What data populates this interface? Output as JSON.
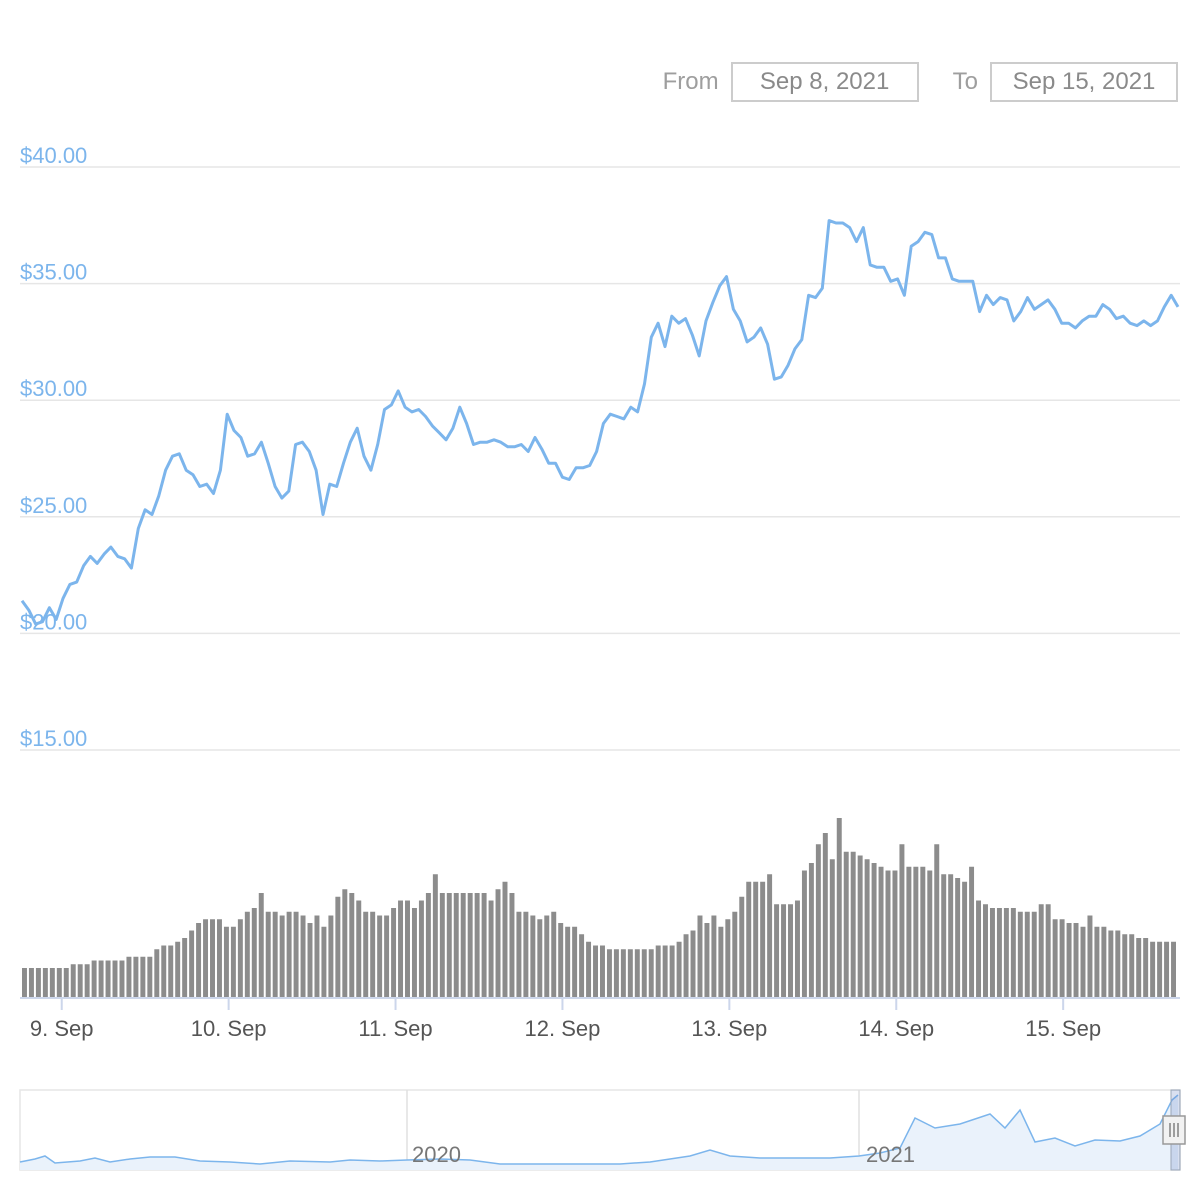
{
  "range_selector": {
    "from_label": "From",
    "from_value": "Sep 8, 2021",
    "to_label": "To",
    "to_value": "Sep 15, 2021"
  },
  "colors": {
    "price_line": "#7cb5ec",
    "volume_bar": "#8c8c8c",
    "grid": "#e6e6e6",
    "navigator_fill": "#eaf2fb",
    "navigator_mask": "#eef2f7"
  },
  "chart_data": {
    "type": "line",
    "title": "",
    "xlabel": "",
    "ylabel": "",
    "yaxis": {
      "ticks": [
        15,
        20,
        25,
        30,
        35,
        40
      ],
      "tick_labels": [
        "$15.00",
        "$20.00",
        "$25.00",
        "$30.00",
        "$35.00",
        "$40.00"
      ],
      "ylim": [
        15,
        40
      ]
    },
    "xaxis": {
      "range_days": [
        8.75,
        15.7
      ],
      "tick_days": [
        9,
        10,
        11,
        12,
        13,
        14,
        15
      ],
      "tick_labels": [
        "9. Sep",
        "10. Sep",
        "11. Sep",
        "12. Sep",
        "13. Sep",
        "14. Sep",
        "15. Sep"
      ]
    },
    "series": [
      {
        "values": [
          21.4,
          21.0,
          20.4,
          20.5,
          21.1,
          20.6,
          21.5,
          22.1,
          22.2,
          22.9,
          23.3,
          23.0,
          23.4,
          23.7,
          23.3,
          23.2,
          22.8,
          24.5,
          25.3,
          25.1,
          25.9,
          27.0,
          27.6,
          27.7,
          27.0,
          26.8,
          26.3,
          26.4,
          26.0,
          27.0,
          29.4,
          28.7,
          28.4,
          27.6,
          27.7,
          28.2,
          27.3,
          26.3,
          25.8,
          26.1,
          28.1,
          28.2,
          27.8,
          27.0,
          25.1,
          26.4,
          26.3,
          27.3,
          28.2,
          28.8,
          27.6,
          27.0,
          28.1,
          29.6,
          29.8,
          30.4,
          29.7,
          29.5,
          29.6,
          29.3,
          28.9,
          28.6,
          28.3,
          28.8,
          29.7,
          29.0,
          28.1,
          28.2,
          28.2,
          28.3,
          28.2,
          28.0,
          28.0,
          28.1,
          27.8,
          28.4,
          27.9,
          27.3,
          27.3,
          26.7,
          26.6,
          27.1,
          27.1,
          27.2,
          27.8,
          29.0,
          29.4,
          29.3,
          29.2,
          29.7,
          29.5,
          30.7,
          32.7,
          33.3,
          32.3,
          33.6,
          33.3,
          33.5,
          32.8,
          31.9,
          33.4,
          34.2,
          34.9,
          35.3,
          33.9,
          33.4,
          32.5,
          32.7,
          33.1,
          32.4,
          30.9,
          31.0,
          31.5,
          32.2,
          32.6,
          34.5,
          34.4,
          34.8,
          37.7,
          37.6,
          37.6,
          37.4,
          36.8,
          37.4,
          35.8,
          35.7,
          35.7,
          35.1,
          35.2,
          34.5,
          36.6,
          36.8,
          37.2,
          37.1,
          36.1,
          36.1,
          35.2,
          35.1,
          35.1,
          35.1,
          33.8,
          34.5,
          34.1,
          34.4,
          34.3,
          33.4,
          33.8,
          34.4,
          33.9,
          34.1,
          34.3,
          33.9,
          33.3,
          33.3,
          33.1,
          33.4,
          33.6,
          33.6,
          34.1,
          33.9,
          33.5,
          33.6,
          33.3,
          33.2,
          33.4,
          33.2,
          33.4,
          34.0,
          34.5,
          34.0
        ]
      }
    ],
    "volume": {
      "values": [
        8,
        8,
        8,
        8,
        8,
        8,
        8,
        9,
        9,
        9,
        10,
        10,
        10,
        10,
        10,
        11,
        11,
        11,
        11,
        13,
        14,
        14,
        15,
        16,
        18,
        20,
        21,
        21,
        21,
        19,
        19,
        21,
        23,
        24,
        28,
        23,
        23,
        22,
        23,
        23,
        22,
        20,
        22,
        19,
        22,
        27,
        29,
        28,
        26,
        23,
        23,
        22,
        22,
        24,
        26,
        26,
        24,
        26,
        28,
        33,
        28,
        28,
        28,
        28,
        28,
        28,
        28,
        26,
        29,
        31,
        28,
        23,
        23,
        22,
        21,
        22,
        23,
        20,
        19,
        19,
        17,
        15,
        14,
        14,
        13,
        13,
        13,
        13,
        13,
        13,
        13,
        14,
        14,
        14,
        15,
        17,
        18,
        22,
        20,
        22,
        19,
        21,
        23,
        27,
        31,
        31,
        31,
        33,
        25,
        25,
        25,
        26,
        34,
        36,
        41,
        44,
        37,
        48,
        39,
        39,
        38,
        37,
        36,
        35,
        34,
        34,
        41,
        35,
        35,
        35,
        34,
        41,
        33,
        33,
        32,
        31,
        35,
        26,
        25,
        24,
        24,
        24,
        24,
        23,
        23,
        23,
        25,
        25,
        21,
        21,
        20,
        20,
        19,
        22,
        19,
        19,
        18,
        18,
        17,
        17,
        16,
        16,
        15,
        15,
        15,
        15
      ]
    },
    "navigator": {
      "labels": [
        "2020",
        "2021"
      ]
    }
  }
}
